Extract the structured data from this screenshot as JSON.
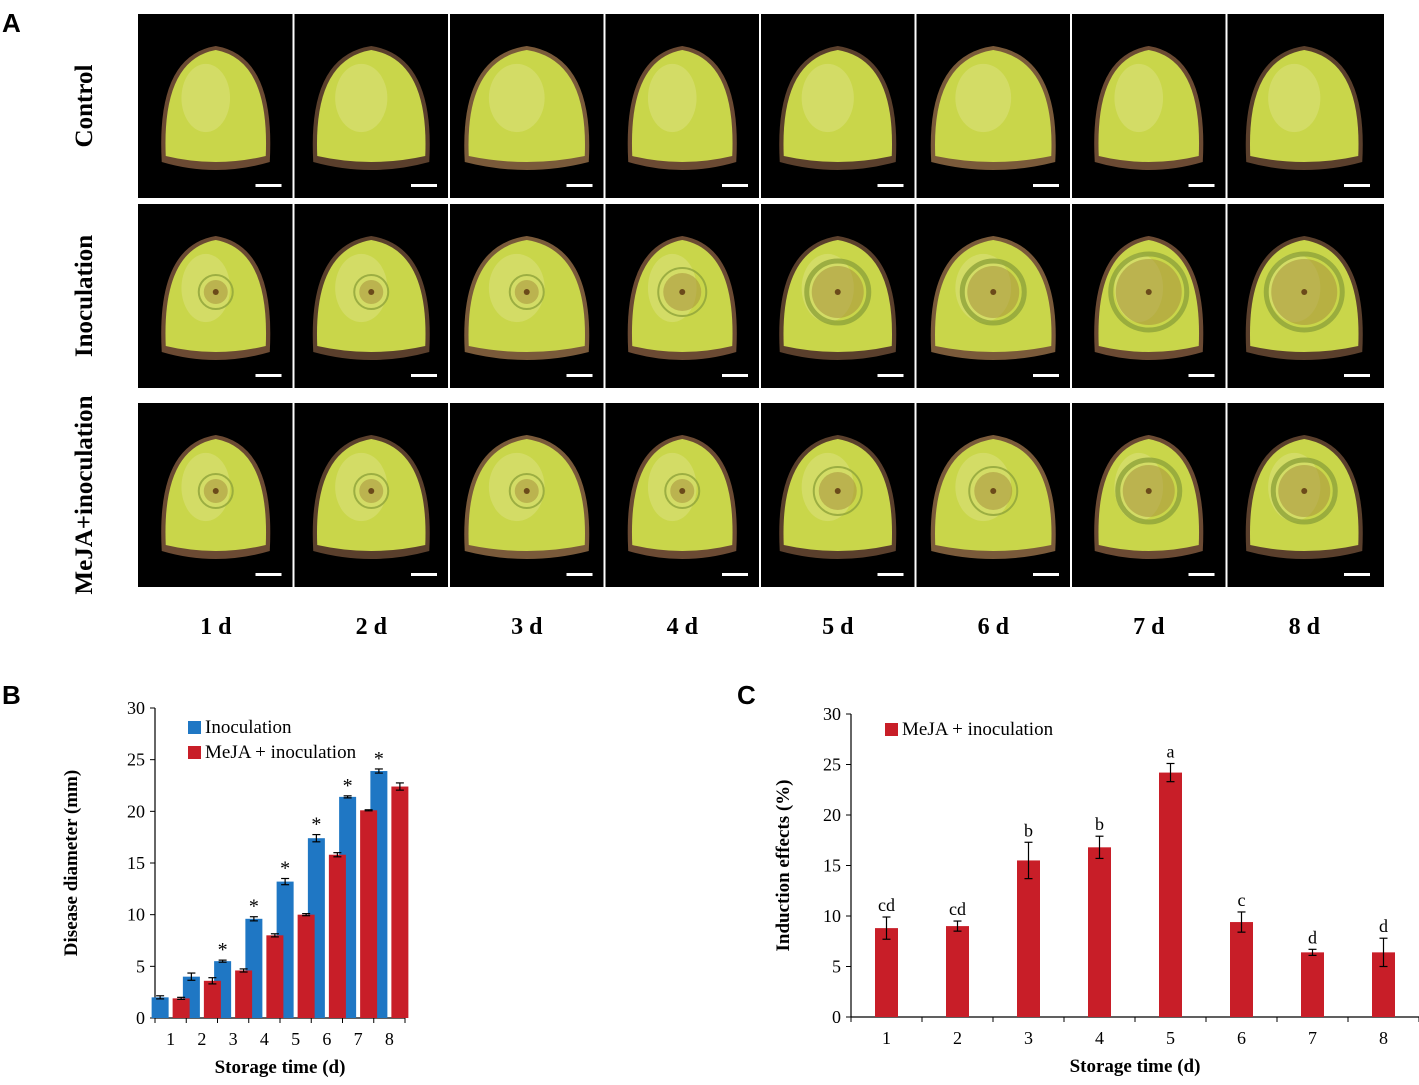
{
  "panel_labels": {
    "a": "A",
    "b": "B",
    "c": "C"
  },
  "photo_grid": {
    "rows": [
      "Control",
      "Inoculation",
      "MeJA+inoculation"
    ],
    "days": [
      "1 d",
      "2 d",
      "3 d",
      "4 d",
      "5 d",
      "6 d",
      "7 d",
      "8 d"
    ],
    "lesion_level": [
      [
        0,
        0,
        0,
        0,
        0,
        0,
        0,
        0
      ],
      [
        1,
        1,
        1,
        2,
        3,
        3,
        4,
        4
      ],
      [
        1,
        1,
        1,
        1,
        2,
        2,
        3,
        3
      ]
    ],
    "colors": {
      "background": "#000000",
      "fruit": "#c9d64a",
      "skin": "#6b4a33",
      "lesion": "#a8923c",
      "scale_bar": "#ffffff"
    }
  },
  "chart_data": [
    {
      "type": "bar",
      "panel": "B",
      "xlabel": "Storage time (d)",
      "ylabel": "Disease diameter (mm)",
      "ylim": [
        0,
        30
      ],
      "yticks": [
        "0",
        "5",
        "10",
        "15",
        "20",
        "25",
        "30"
      ],
      "categories": [
        "1",
        "2",
        "3",
        "4",
        "5",
        "6",
        "7",
        "8"
      ],
      "series": [
        {
          "name": "Inoculation",
          "color": "#1f77c4",
          "values": [
            2.0,
            4.0,
            5.5,
            9.6,
            13.2,
            17.4,
            21.4,
            23.9
          ],
          "errors": [
            0.15,
            0.35,
            0.1,
            0.2,
            0.3,
            0.35,
            0.1,
            0.2
          ]
        },
        {
          "name": "MeJA + inoculation",
          "color": "#c81e28",
          "values": [
            1.9,
            3.6,
            4.6,
            8.0,
            10.0,
            15.8,
            20.1,
            22.4
          ],
          "errors": [
            0.1,
            0.3,
            0.15,
            0.15,
            0.1,
            0.2,
            0.05,
            0.35
          ]
        }
      ],
      "significance": [
        "",
        "",
        "*",
        "*",
        "*",
        "*",
        "*",
        "*"
      ]
    },
    {
      "type": "bar",
      "panel": "C",
      "xlabel": "Storage time (d)",
      "ylabel": "Induction effects (%)",
      "ylim": [
        0,
        30
      ],
      "yticks": [
        "0",
        "5",
        "10",
        "15",
        "20",
        "25",
        "30"
      ],
      "categories": [
        "1",
        "2",
        "3",
        "4",
        "5",
        "6",
        "7",
        "8"
      ],
      "series": [
        {
          "name": "MeJA + inoculation",
          "color": "#c81e28",
          "values": [
            8.8,
            9.0,
            15.5,
            16.8,
            24.2,
            9.4,
            6.4,
            6.4
          ],
          "errors": [
            1.1,
            0.5,
            1.8,
            1.1,
            0.9,
            1.0,
            0.3,
            1.4
          ]
        }
      ],
      "letters": [
        "cd",
        "cd",
        "b",
        "b",
        "a",
        "c",
        "d",
        "d"
      ]
    }
  ]
}
